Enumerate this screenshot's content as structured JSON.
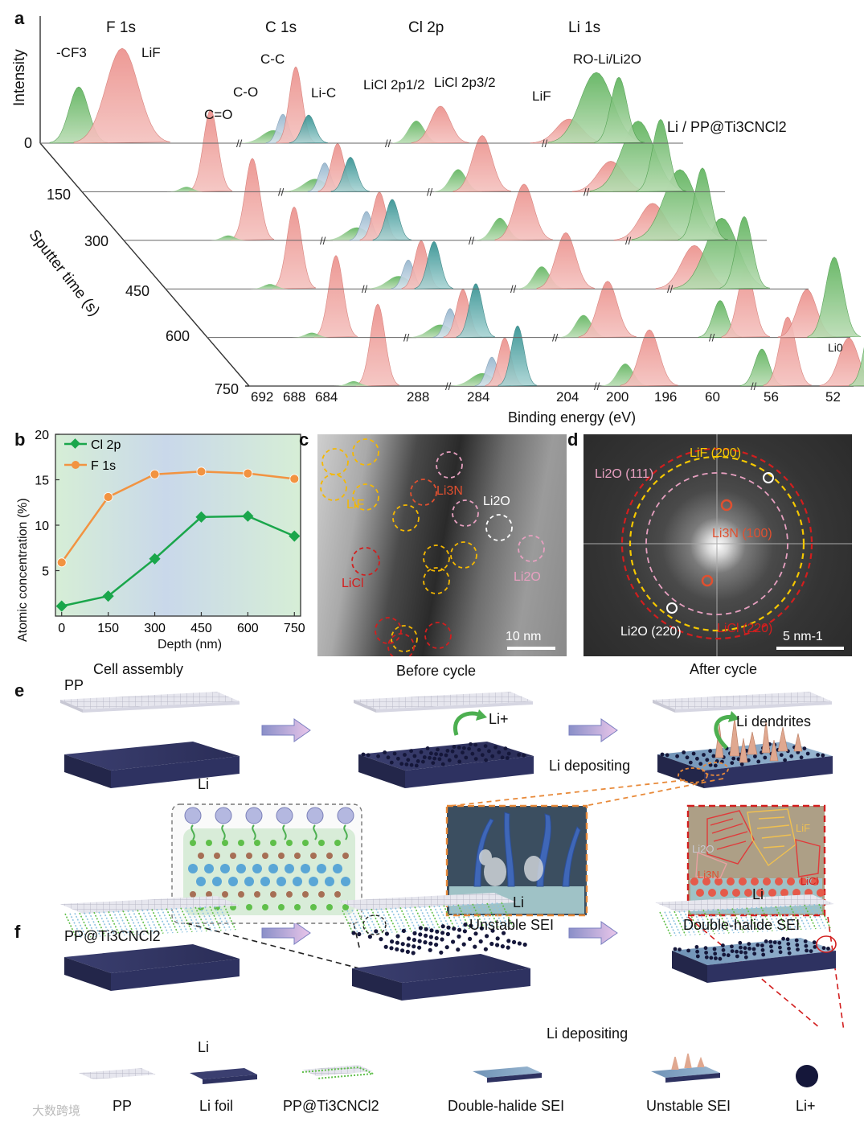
{
  "panel_a": {
    "label": "a",
    "ylabel": "Intensity",
    "depth_axis_label": "Sputter time (s)",
    "sample": "Li / PP@Ti3CNCl2",
    "headers": {
      "f1s": "F 1s",
      "c1s": "C 1s",
      "cl2p": "Cl 2p",
      "li1s": "Li 1s"
    },
    "peak_labels": {
      "cf3": "-CF3",
      "lif_f": "LiF",
      "cc": "C-C",
      "co": "C-O",
      "c_o": "C=O",
      "lic": "Li-C",
      "licl12": "LiCl 2p1/2",
      "licl32": "LiCl 2p3/2",
      "lif_cl": "LiF",
      "roli": "RO-Li/Li2O",
      "li0": "Li0"
    },
    "sputter_times": [
      "0",
      "150",
      "300",
      "450",
      "600",
      "750"
    ],
    "xticks": [
      "692",
      "688",
      "684",
      "288",
      "284",
      "204",
      "200",
      "196",
      "60",
      "56",
      "52"
    ],
    "xlabel": "Binding energy (eV)"
  },
  "chart_data": {
    "type": "line",
    "x": [
      0,
      150,
      300,
      450,
      600,
      750
    ],
    "series": [
      {
        "name": "Cl 2p",
        "values": [
          1.1,
          2.2,
          6.3,
          10.9,
          11.0,
          8.8
        ],
        "color": "#1aa64b"
      },
      {
        "name": "F 1s",
        "values": [
          5.9,
          13.1,
          15.6,
          15.9,
          15.7,
          15.1
        ],
        "color": "#f29341"
      }
    ],
    "xlabel": "Depth (nm)",
    "ylabel": "Atomic concentration (%)",
    "xticks": [
      "0",
      "150",
      "300",
      "450",
      "600",
      "750"
    ],
    "yticks": [
      "5",
      "10",
      "15",
      "20"
    ],
    "ylim": [
      0,
      20
    ],
    "xlim": [
      -20,
      770
    ],
    "legend": "top-left"
  },
  "panel_b": {
    "label": "b"
  },
  "panel_c": {
    "label": "c",
    "labels": {
      "lif": "LiF",
      "li3n": "Li3N",
      "li2o_w": "Li2O",
      "licl": "LiCl",
      "li2o_p": "Li2O"
    },
    "scalebar": "10 nm"
  },
  "panel_d": {
    "label": "d",
    "labels": {
      "lif200": "LiF (200)",
      "li2o111": "Li2O (111)",
      "li3n100": "Li3N (100)",
      "li2o220": "Li2O (220)",
      "licl220": "LiCl (220)"
    },
    "scalebar": "5 nm-1"
  },
  "panel_e": {
    "label": "e",
    "stages": {
      "assembly": "Cell assembly",
      "before": "Before cycle",
      "after": "After cycle"
    },
    "pp": "PP",
    "li": "Li",
    "li_ion": "Li+",
    "dendrites": "Li dendrites",
    "depositing": "Li depositing",
    "unstable_li": "Li",
    "unstable": "Unstable SEI",
    "dh_labels": {
      "li2o": "Li2O",
      "lif": "LiF",
      "li3n": "Li3N",
      "licl": "LiCl",
      "li": "Li"
    },
    "double_halide": "Double-halide SEI"
  },
  "panel_f": {
    "label": "f",
    "sample": "PP@Ti3CNCl2",
    "li": "Li",
    "depositing": "Li depositing"
  },
  "legend_row": {
    "pp": "PP",
    "li_foil": "Li foil",
    "pp_ti": "PP@Ti3CNCl2",
    "dh_sei": "Double-halide SEI",
    "unstable_sei": "Unstable SEI",
    "li_ion": "Li+"
  },
  "watermark": "大数跨境"
}
